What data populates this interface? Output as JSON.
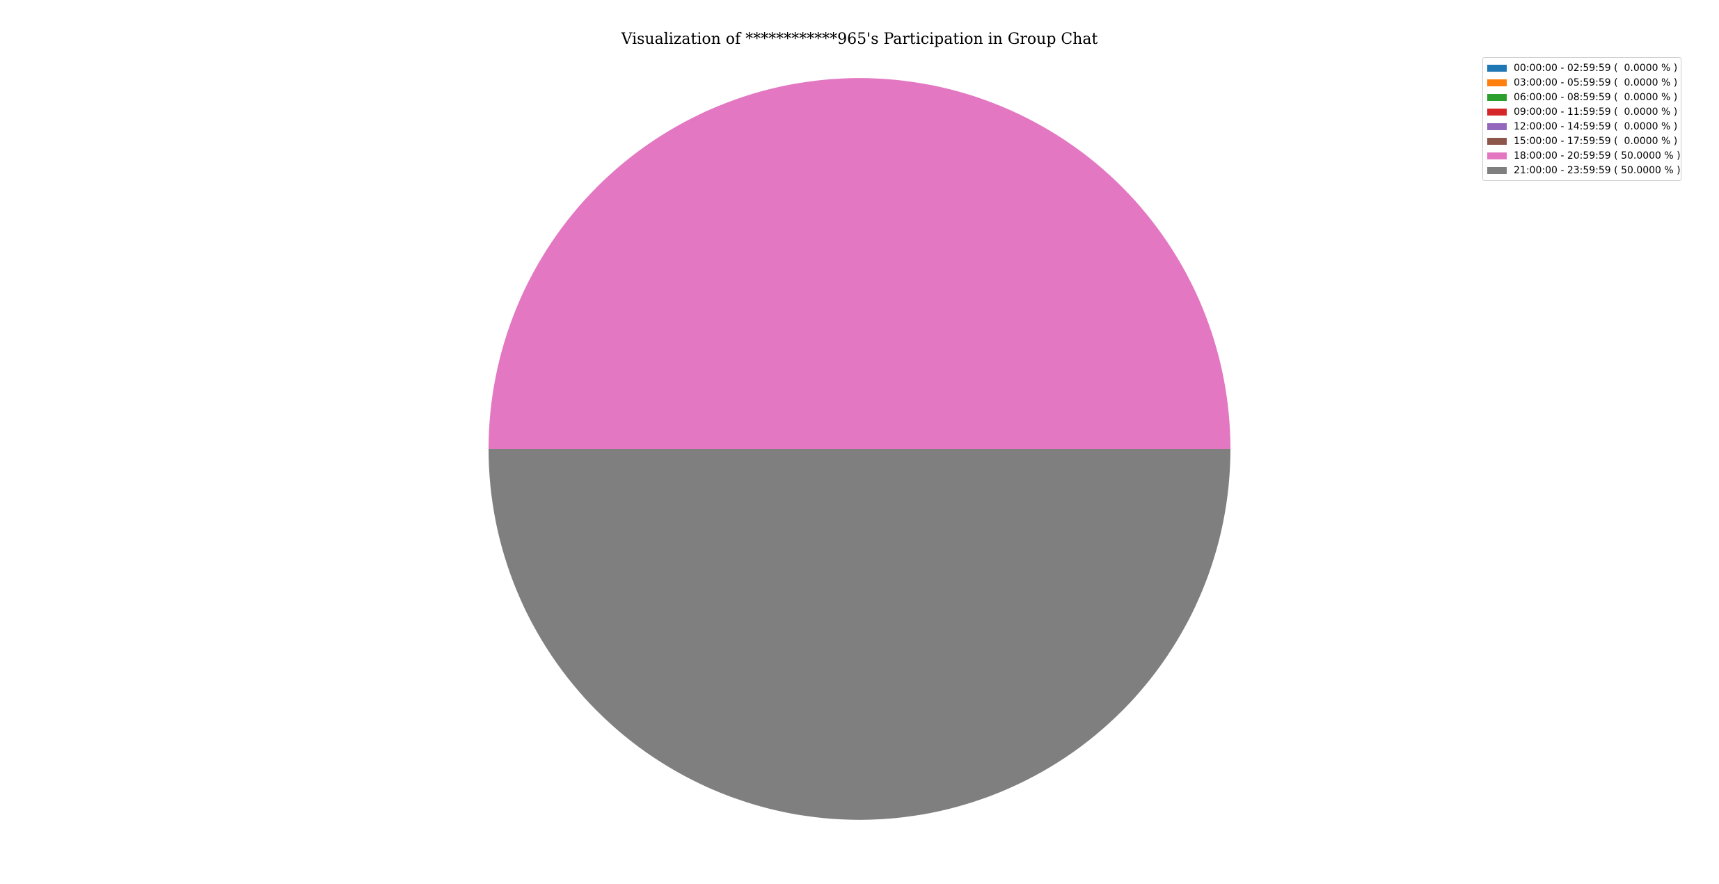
{
  "chart_data": {
    "type": "pie",
    "title": "Visualization of ************965's Participation in Group Chat",
    "legend_position": "top-right",
    "start_angle_deg": 0,
    "direction": "counterclockwise",
    "slices": [
      {
        "label": "00:00:00 - 02:59:59 (  0.0000 % )",
        "value": 0.0,
        "color": "#1f77b4"
      },
      {
        "label": "03:00:00 - 05:59:59 (  0.0000 % )",
        "value": 0.0,
        "color": "#ff7f0e"
      },
      {
        "label": "06:00:00 - 08:59:59 (  0.0000 % )",
        "value": 0.0,
        "color": "#2ca02c"
      },
      {
        "label": "09:00:00 - 11:59:59 (  0.0000 % )",
        "value": 0.0,
        "color": "#d62728"
      },
      {
        "label": "12:00:00 - 14:59:59 (  0.0000 % )",
        "value": 0.0,
        "color": "#9467bd"
      },
      {
        "label": "15:00:00 - 17:59:59 (  0.0000 % )",
        "value": 0.0,
        "color": "#8c564b"
      },
      {
        "label": "18:00:00 - 20:59:59 ( 50.0000 % )",
        "value": 50.0,
        "color": "#e377c2"
      },
      {
        "label": "21:00:00 - 23:59:59 ( 50.0000 % )",
        "value": 50.0,
        "color": "#7f7f7f"
      }
    ]
  }
}
